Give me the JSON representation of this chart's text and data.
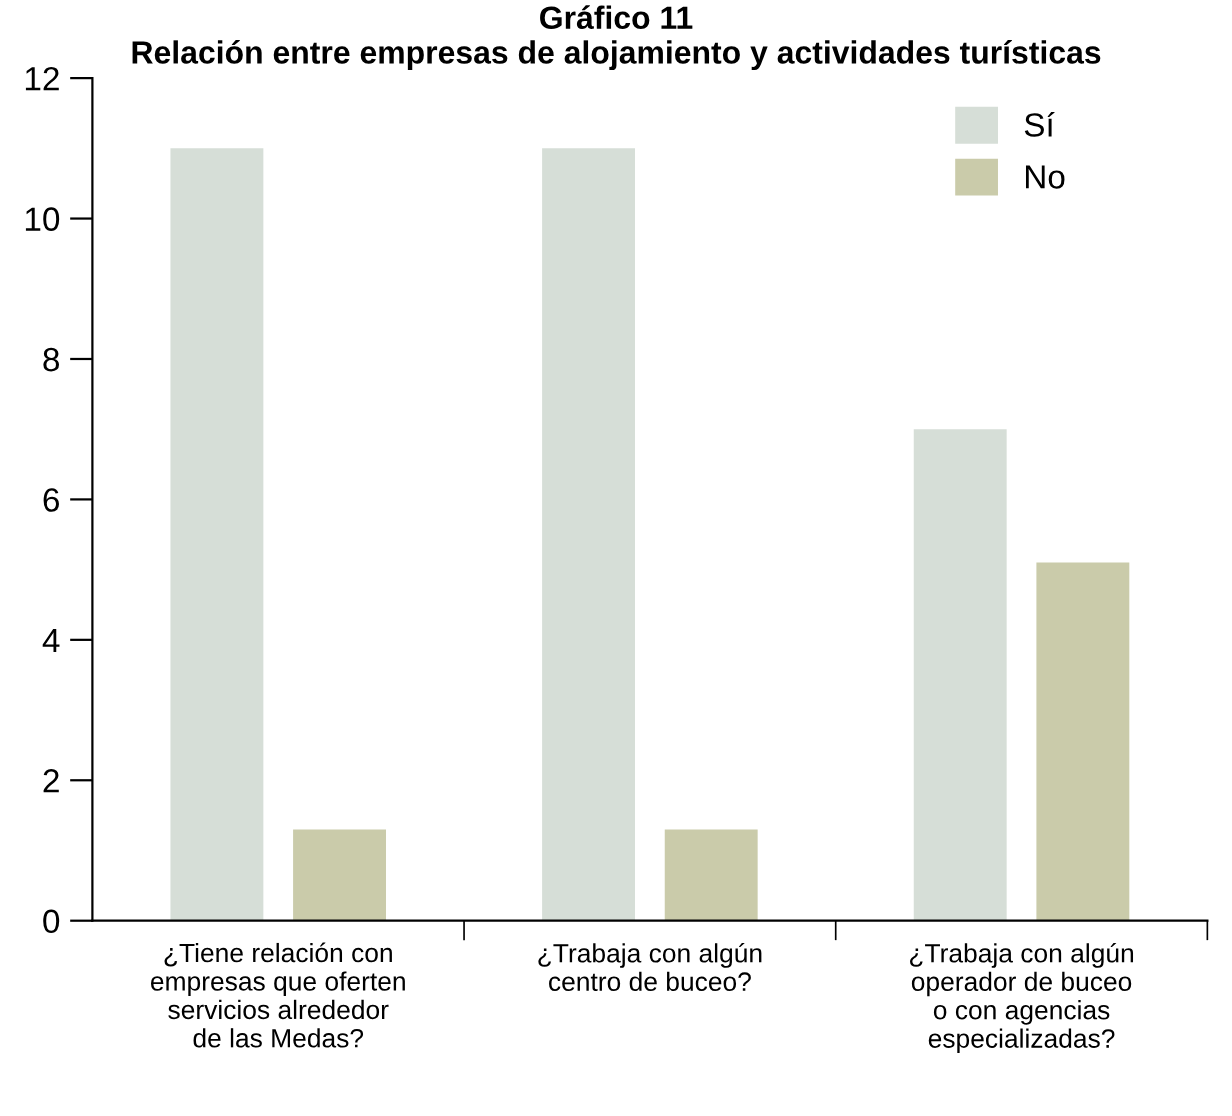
{
  "chart_data": {
    "type": "bar",
    "title": "Gráfico 11\nRelación entre empresas de alojamiento y actividades turísticas",
    "categories": [
      "¿Tiene relación con\nempresas que oferten\nservicios alrededor\nde las Medas?",
      "¿Trabaja con algún\ncentro de buceo?",
      "¿Trabaja con algún\noperador de buceo\no con agencias\nespecializadas?"
    ],
    "series": [
      {
        "name": "Sí",
        "color": "#d6ded7",
        "values": [
          11,
          11,
          7
        ]
      },
      {
        "name": "No",
        "color": "#cacbaa",
        "values": [
          1.3,
          1.3,
          5.1
        ]
      }
    ],
    "ylim": [
      0,
      12
    ],
    "yticks": [
      0,
      2,
      4,
      6,
      8,
      10,
      12
    ],
    "grid": false,
    "legend": "top right"
  }
}
